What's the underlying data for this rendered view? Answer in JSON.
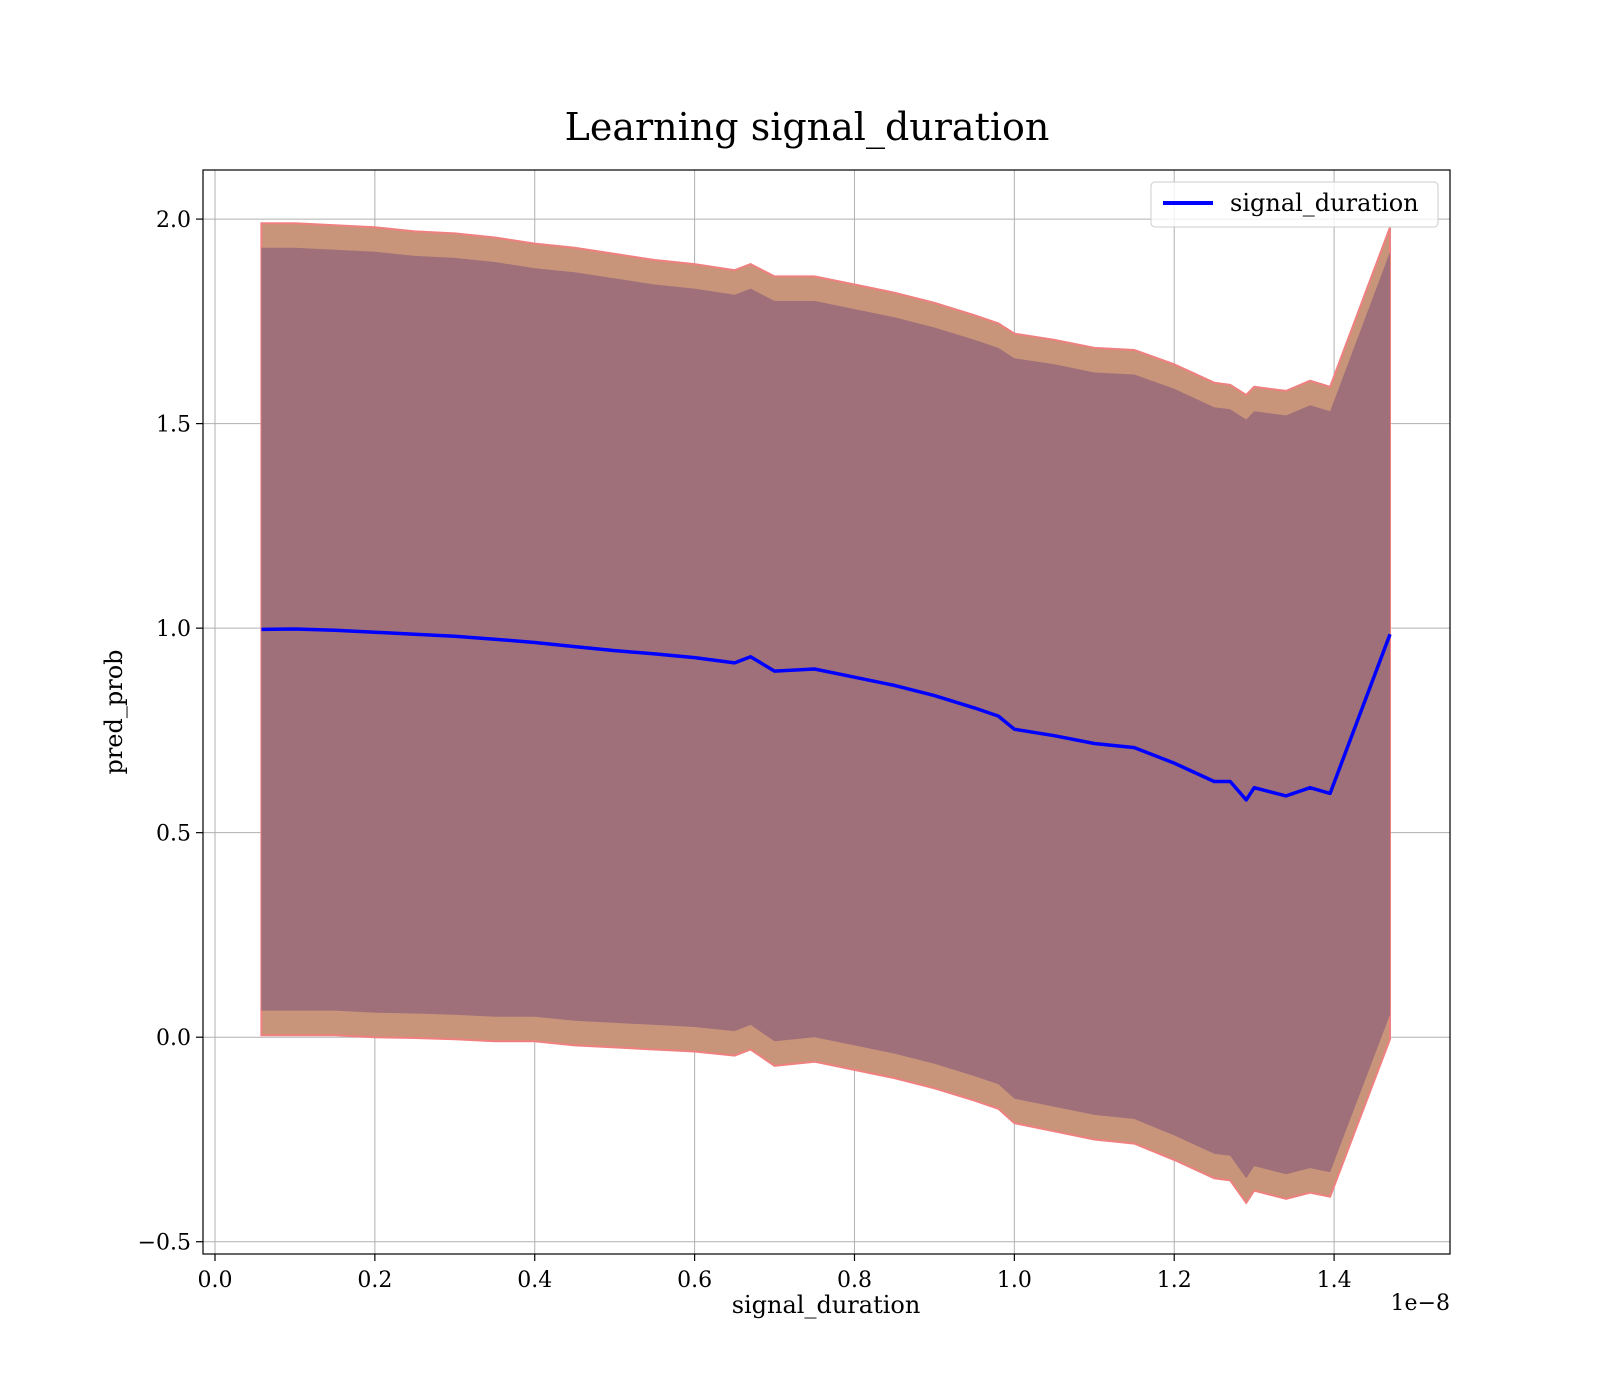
{
  "chart_data": {
    "type": "line",
    "title": "Learning signal_duration",
    "xlabel": "signal_duration",
    "ylabel": "pred_prob",
    "x_offset_text": "1e−8",
    "xlim": [
      -0.015,
      1.545
    ],
    "ylim": [
      -0.53,
      2.12
    ],
    "x_ticks": [
      0.0,
      0.2,
      0.4,
      0.6,
      0.8,
      1.0,
      1.2,
      1.4
    ],
    "x_tick_labels": [
      "0.0",
      "0.2",
      "0.4",
      "0.6",
      "0.8",
      "1.0",
      "1.2",
      "1.4"
    ],
    "y_ticks": [
      -0.5,
      0.0,
      0.5,
      1.0,
      1.5,
      2.0
    ],
    "y_tick_labels": [
      "−0.5",
      "0.0",
      "0.5",
      "1.0",
      "1.5",
      "2.0"
    ],
    "grid": true,
    "legend_position": "top-right",
    "colors": {
      "line": "#0000ff",
      "outer_band": "#c8957a",
      "outer_band_edge": "#f08080",
      "inner_band": "#a0707a",
      "grid": "#b0b0b0"
    },
    "series": [
      {
        "name": "signal_duration",
        "x": [
          0.058,
          0.1,
          0.15,
          0.2,
          0.25,
          0.3,
          0.35,
          0.4,
          0.45,
          0.5,
          0.55,
          0.6,
          0.65,
          0.67,
          0.7,
          0.75,
          0.8,
          0.85,
          0.9,
          0.95,
          0.98,
          1.0,
          1.05,
          1.1,
          1.15,
          1.2,
          1.25,
          1.27,
          1.29,
          1.3,
          1.34,
          1.37,
          1.395,
          1.47
        ],
        "y": [
          0.997,
          0.998,
          0.995,
          0.99,
          0.985,
          0.98,
          0.973,
          0.965,
          0.955,
          0.945,
          0.937,
          0.928,
          0.915,
          0.93,
          0.895,
          0.9,
          0.88,
          0.86,
          0.835,
          0.805,
          0.785,
          0.753,
          0.737,
          0.718,
          0.708,
          0.67,
          0.625,
          0.625,
          0.58,
          0.61,
          0.59,
          0.61,
          0.596,
          0.985
        ]
      }
    ],
    "bands": [
      {
        "role": "outer",
        "x": [
          0.058,
          0.1,
          0.15,
          0.2,
          0.25,
          0.3,
          0.35,
          0.4,
          0.45,
          0.5,
          0.55,
          0.6,
          0.65,
          0.67,
          0.7,
          0.75,
          0.8,
          0.85,
          0.9,
          0.95,
          0.98,
          1.0,
          1.05,
          1.1,
          1.15,
          1.2,
          1.25,
          1.27,
          1.29,
          1.3,
          1.34,
          1.37,
          1.395,
          1.47
        ],
        "upper": [
          1.99,
          1.99,
          1.985,
          1.98,
          1.97,
          1.965,
          1.955,
          1.94,
          1.93,
          1.915,
          1.9,
          1.89,
          1.875,
          1.89,
          1.86,
          1.86,
          1.84,
          1.82,
          1.795,
          1.765,
          1.745,
          1.72,
          1.705,
          1.685,
          1.68,
          1.645,
          1.6,
          1.595,
          1.57,
          1.59,
          1.58,
          1.605,
          1.59,
          1.98
        ],
        "lower": [
          0.005,
          0.005,
          0.005,
          0.0,
          -0.002,
          -0.005,
          -0.01,
          -0.01,
          -0.02,
          -0.025,
          -0.03,
          -0.035,
          -0.045,
          -0.03,
          -0.07,
          -0.06,
          -0.08,
          -0.1,
          -0.125,
          -0.155,
          -0.175,
          -0.21,
          -0.23,
          -0.25,
          -0.26,
          -0.3,
          -0.345,
          -0.35,
          -0.405,
          -0.375,
          -0.395,
          -0.38,
          -0.39,
          -0.005
        ]
      },
      {
        "role": "inner",
        "x": [
          0.058,
          0.1,
          0.15,
          0.2,
          0.25,
          0.3,
          0.35,
          0.4,
          0.45,
          0.5,
          0.55,
          0.6,
          0.65,
          0.67,
          0.7,
          0.75,
          0.8,
          0.85,
          0.9,
          0.95,
          0.98,
          1.0,
          1.05,
          1.1,
          1.15,
          1.2,
          1.25,
          1.27,
          1.29,
          1.3,
          1.34,
          1.37,
          1.395,
          1.47
        ],
        "upper": [
          1.93,
          1.93,
          1.925,
          1.92,
          1.91,
          1.905,
          1.895,
          1.88,
          1.87,
          1.855,
          1.84,
          1.83,
          1.815,
          1.83,
          1.8,
          1.8,
          1.78,
          1.76,
          1.735,
          1.705,
          1.685,
          1.66,
          1.645,
          1.625,
          1.62,
          1.585,
          1.54,
          1.535,
          1.51,
          1.53,
          1.52,
          1.545,
          1.53,
          1.92
        ],
        "lower": [
          0.065,
          0.065,
          0.065,
          0.06,
          0.058,
          0.055,
          0.05,
          0.05,
          0.04,
          0.035,
          0.03,
          0.025,
          0.015,
          0.03,
          -0.01,
          0.0,
          -0.02,
          -0.04,
          -0.065,
          -0.095,
          -0.115,
          -0.15,
          -0.17,
          -0.19,
          -0.2,
          -0.24,
          -0.285,
          -0.29,
          -0.345,
          -0.315,
          -0.335,
          -0.32,
          -0.33,
          0.055
        ]
      }
    ]
  }
}
